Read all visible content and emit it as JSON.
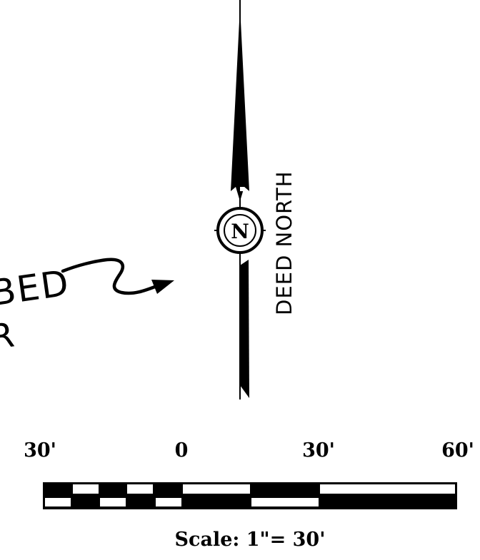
{
  "handwritten_note": {
    "line1": "BED",
    "line2": "R"
  },
  "north_arrow": {
    "symbol_letter": "N",
    "label": "DEED NORTH"
  },
  "scale_bar": {
    "tick_labels": [
      "30'",
      "0",
      "30'",
      "60'"
    ],
    "caption": "Scale: 1\"= 30'"
  },
  "colors": {
    "ink": "#000000",
    "paper": "#ffffff"
  }
}
